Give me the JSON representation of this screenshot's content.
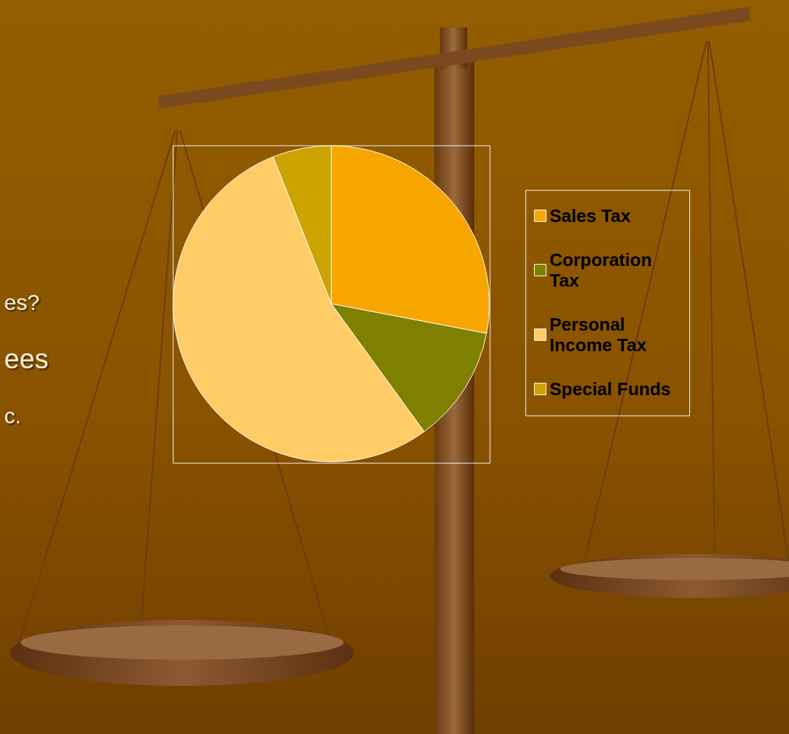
{
  "chart_data": {
    "type": "pie",
    "categories": [
      "Sales Tax",
      "Corporation Tax",
      "Personal Income Tax",
      "Special Funds"
    ],
    "values": [
      28,
      12,
      54,
      6
    ],
    "colors": [
      "#F7A600",
      "#808000",
      "#FFCC66",
      "#CCA300"
    ],
    "legend": "right",
    "data_labels": false,
    "annotations": [
      "es?",
      "ees",
      "c."
    ]
  }
}
